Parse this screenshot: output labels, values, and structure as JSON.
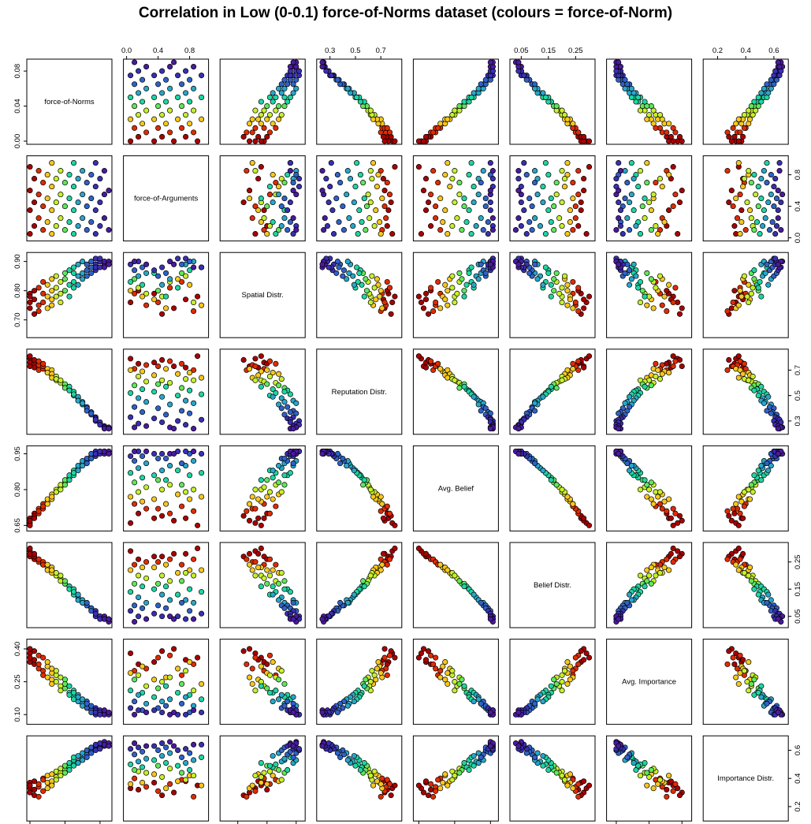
{
  "title": "Correlation in  Low (0-0.1) force-of-Norms dataset (colours = force-of-Norm)",
  "chart_data": {
    "type": "scatter",
    "subtype": "scatterplot-matrix",
    "title": "Correlation in  Low (0-0.1) force-of-Norms dataset (colours = force-of-Norm)",
    "color_variable": "force-of-Norms",
    "color_scale": [
      "#aa0000",
      "#e02c00",
      "#f6c81c",
      "#c6f02a",
      "#5fe85a",
      "#1dd6a3",
      "#27a7c9",
      "#2f62c8",
      "#3a2fb4",
      "#4a1aa0"
    ],
    "variables": [
      {
        "name": "force-of-Norms",
        "range": [
          0,
          0.09
        ],
        "ticks": [
          0.0,
          0.04,
          0.08
        ],
        "tick_labels": [
          "0.00",
          "0.04",
          "0.08"
        ]
      },
      {
        "name": "force-of-Arguments",
        "range": [
          0,
          1
        ],
        "ticks": [
          0.0,
          0.4,
          0.8
        ],
        "tick_labels": [
          "0.0",
          "0.4",
          "0.8"
        ]
      },
      {
        "name": "Spatial Distr.",
        "range": [
          0.65,
          0.92
        ],
        "ticks": [
          0.7,
          0.8,
          0.9
        ],
        "tick_labels": [
          "0.70",
          "0.80",
          "0.90"
        ]
      },
      {
        "name": "Reputation Distr.",
        "range": [
          0.22,
          0.84
        ],
        "ticks": [
          0.3,
          0.5,
          0.7
        ],
        "tick_labels": [
          "0.3",
          "0.5",
          "0.7"
        ]
      },
      {
        "name": "Avg. Belief",
        "range": [
          0.64,
          0.97
        ],
        "ticks": [
          0.65,
          0.8,
          0.95
        ],
        "tick_labels": [
          "0.65",
          "0.80",
          "0.95"
        ]
      },
      {
        "name": "Belief Distr.",
        "range": [
          0.02,
          0.31
        ],
        "ticks": [
          0.05,
          0.15,
          0.25
        ],
        "tick_labels": [
          "0.05",
          "0.15",
          "0.25"
        ]
      },
      {
        "name": "Avg. Importance",
        "range": [
          0.07,
          0.43
        ],
        "ticks": [
          0.1,
          0.25,
          0.4
        ],
        "tick_labels": [
          "0.10",
          "0.25",
          "0.40"
        ]
      },
      {
        "name": "Importance Distr.",
        "range": [
          0.12,
          0.68
        ],
        "ticks": [
          0.2,
          0.4,
          0.6
        ],
        "tick_labels": [
          "0.2",
          "0.4",
          "0.6"
        ]
      }
    ],
    "points": [
      [
        0.0,
        0.05,
        0.76,
        0.79,
        0.66,
        0.29,
        0.38,
        0.33
      ],
      [
        0.0,
        0.35,
        0.79,
        0.76,
        0.68,
        0.27,
        0.34,
        0.37
      ],
      [
        0.0,
        0.6,
        0.74,
        0.73,
        0.67,
        0.28,
        0.4,
        0.3
      ],
      [
        0.0,
        0.9,
        0.78,
        0.81,
        0.65,
        0.3,
        0.36,
        0.35
      ],
      [
        0.005,
        0.15,
        0.8,
        0.75,
        0.7,
        0.26,
        0.33,
        0.32
      ],
      [
        0.005,
        0.45,
        0.72,
        0.78,
        0.69,
        0.27,
        0.39,
        0.28
      ],
      [
        0.005,
        0.75,
        0.77,
        0.72,
        0.68,
        0.28,
        0.35,
        0.38
      ],
      [
        0.01,
        0.25,
        0.75,
        0.74,
        0.72,
        0.25,
        0.31,
        0.34
      ],
      [
        0.01,
        0.55,
        0.81,
        0.77,
        0.7,
        0.26,
        0.37,
        0.36
      ],
      [
        0.01,
        0.85,
        0.73,
        0.7,
        0.71,
        0.26,
        0.33,
        0.27
      ],
      [
        0.015,
        0.1,
        0.79,
        0.71,
        0.74,
        0.24,
        0.3,
        0.4
      ],
      [
        0.015,
        0.4,
        0.76,
        0.73,
        0.72,
        0.25,
        0.36,
        0.31
      ],
      [
        0.015,
        0.7,
        0.83,
        0.75,
        0.73,
        0.24,
        0.28,
        0.39
      ],
      [
        0.02,
        0.2,
        0.78,
        0.69,
        0.75,
        0.23,
        0.32,
        0.37
      ],
      [
        0.02,
        0.5,
        0.74,
        0.71,
        0.74,
        0.24,
        0.27,
        0.33
      ],
      [
        0.02,
        0.8,
        0.82,
        0.68,
        0.76,
        0.22,
        0.34,
        0.42
      ],
      [
        0.025,
        0.05,
        0.8,
        0.7,
        0.77,
        0.22,
        0.29,
        0.36
      ],
      [
        0.025,
        0.35,
        0.77,
        0.66,
        0.76,
        0.23,
        0.26,
        0.43
      ],
      [
        0.025,
        0.65,
        0.84,
        0.67,
        0.78,
        0.21,
        0.31,
        0.38
      ],
      [
        0.025,
        0.95,
        0.75,
        0.64,
        0.77,
        0.22,
        0.24,
        0.35
      ],
      [
        0.03,
        0.15,
        0.81,
        0.65,
        0.79,
        0.2,
        0.28,
        0.45
      ],
      [
        0.03,
        0.45,
        0.78,
        0.62,
        0.8,
        0.2,
        0.25,
        0.41
      ],
      [
        0.03,
        0.75,
        0.85,
        0.63,
        0.79,
        0.21,
        0.3,
        0.39
      ],
      [
        0.035,
        0.25,
        0.79,
        0.61,
        0.81,
        0.19,
        0.23,
        0.44
      ],
      [
        0.035,
        0.55,
        0.83,
        0.6,
        0.82,
        0.18,
        0.27,
        0.47
      ],
      [
        0.035,
        0.85,
        0.76,
        0.62,
        0.8,
        0.2,
        0.21,
        0.42
      ],
      [
        0.04,
        0.1,
        0.84,
        0.58,
        0.83,
        0.17,
        0.26,
        0.46
      ],
      [
        0.04,
        0.4,
        0.8,
        0.59,
        0.84,
        0.17,
        0.22,
        0.49
      ],
      [
        0.04,
        0.7,
        0.86,
        0.56,
        0.82,
        0.18,
        0.24,
        0.44
      ],
      [
        0.045,
        0.2,
        0.82,
        0.55,
        0.85,
        0.16,
        0.2,
        0.48
      ],
      [
        0.045,
        0.5,
        0.78,
        0.57,
        0.84,
        0.16,
        0.23,
        0.51
      ],
      [
        0.045,
        0.8,
        0.87,
        0.54,
        0.86,
        0.15,
        0.19,
        0.46
      ],
      [
        0.05,
        0.05,
        0.83,
        0.52,
        0.87,
        0.14,
        0.21,
        0.5
      ],
      [
        0.05,
        0.35,
        0.86,
        0.53,
        0.86,
        0.15,
        0.18,
        0.53
      ],
      [
        0.05,
        0.65,
        0.81,
        0.5,
        0.88,
        0.13,
        0.2,
        0.49
      ],
      [
        0.05,
        0.95,
        0.88,
        0.51,
        0.87,
        0.14,
        0.17,
        0.55
      ],
      [
        0.055,
        0.15,
        0.85,
        0.48,
        0.89,
        0.12,
        0.19,
        0.52
      ],
      [
        0.055,
        0.45,
        0.82,
        0.49,
        0.88,
        0.13,
        0.16,
        0.56
      ],
      [
        0.055,
        0.75,
        0.89,
        0.46,
        0.9,
        0.11,
        0.18,
        0.51
      ],
      [
        0.06,
        0.25,
        0.86,
        0.45,
        0.91,
        0.1,
        0.15,
        0.54
      ],
      [
        0.06,
        0.55,
        0.84,
        0.43,
        0.9,
        0.11,
        0.17,
        0.58
      ],
      [
        0.06,
        0.85,
        0.9,
        0.44,
        0.92,
        0.1,
        0.14,
        0.53
      ],
      [
        0.065,
        0.1,
        0.87,
        0.41,
        0.92,
        0.09,
        0.16,
        0.57
      ],
      [
        0.065,
        0.4,
        0.85,
        0.4,
        0.93,
        0.09,
        0.13,
        0.6
      ],
      [
        0.065,
        0.7,
        0.89,
        0.38,
        0.91,
        0.1,
        0.15,
        0.55
      ],
      [
        0.07,
        0.2,
        0.88,
        0.37,
        0.94,
        0.08,
        0.12,
        0.59
      ],
      [
        0.07,
        0.5,
        0.86,
        0.35,
        0.93,
        0.08,
        0.14,
        0.62
      ],
      [
        0.07,
        0.8,
        0.9,
        0.36,
        0.95,
        0.07,
        0.11,
        0.58
      ],
      [
        0.075,
        0.05,
        0.89,
        0.33,
        0.94,
        0.07,
        0.13,
        0.61
      ],
      [
        0.075,
        0.35,
        0.87,
        0.32,
        0.95,
        0.06,
        0.12,
        0.63
      ],
      [
        0.075,
        0.65,
        0.91,
        0.3,
        0.96,
        0.05,
        0.1,
        0.6
      ],
      [
        0.075,
        0.95,
        0.88,
        0.31,
        0.95,
        0.06,
        0.11,
        0.64
      ],
      [
        0.08,
        0.15,
        0.9,
        0.28,
        0.96,
        0.05,
        0.12,
        0.62
      ],
      [
        0.08,
        0.45,
        0.88,
        0.29,
        0.95,
        0.05,
        0.11,
        0.65
      ],
      [
        0.08,
        0.75,
        0.91,
        0.27,
        0.96,
        0.04,
        0.1,
        0.61
      ],
      [
        0.085,
        0.25,
        0.89,
        0.26,
        0.96,
        0.04,
        0.11,
        0.63
      ],
      [
        0.085,
        0.55,
        0.9,
        0.25,
        0.95,
        0.05,
        0.1,
        0.66
      ],
      [
        0.085,
        0.85,
        0.88,
        0.24,
        0.96,
        0.04,
        0.12,
        0.64
      ],
      [
        0.09,
        0.1,
        0.9,
        0.25,
        0.96,
        0.03,
        0.1,
        0.65
      ],
      [
        0.09,
        0.6,
        0.89,
        0.24,
        0.95,
        0.04,
        0.11,
        0.63
      ]
    ]
  }
}
